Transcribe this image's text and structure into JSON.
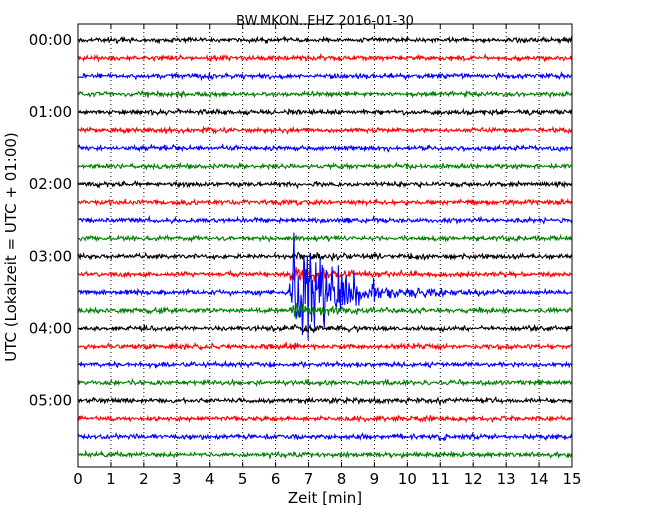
{
  "chart_data": {
    "type": "line",
    "title": "BW.MKON..EHZ 2016-01-30",
    "xlabel": "Zeit  [min]",
    "ylabel": "UTC (Lokalzeit = UTC + 01:00)",
    "xlim": [
      0,
      15
    ],
    "x_ticks": [
      "0",
      "1",
      "2",
      "3",
      "4",
      "5",
      "6",
      "7",
      "8",
      "9",
      "10",
      "11",
      "12",
      "13",
      "14",
      "15"
    ],
    "y_ticks": [
      "00:00",
      "01:00",
      "02:00",
      "03:00",
      "04:00",
      "05:00"
    ],
    "trace_interval_min": 15,
    "trace_count": 24,
    "color_cycle": [
      "#000000",
      "#ff0000",
      "#0000ff",
      "#008000"
    ],
    "grid": "dotted vertical lines at each minute",
    "events": [
      {
        "trace_start": "03:30",
        "onset_min": 6.4,
        "peak_min": 6.55,
        "coda_end_min": 11.0
      }
    ]
  }
}
